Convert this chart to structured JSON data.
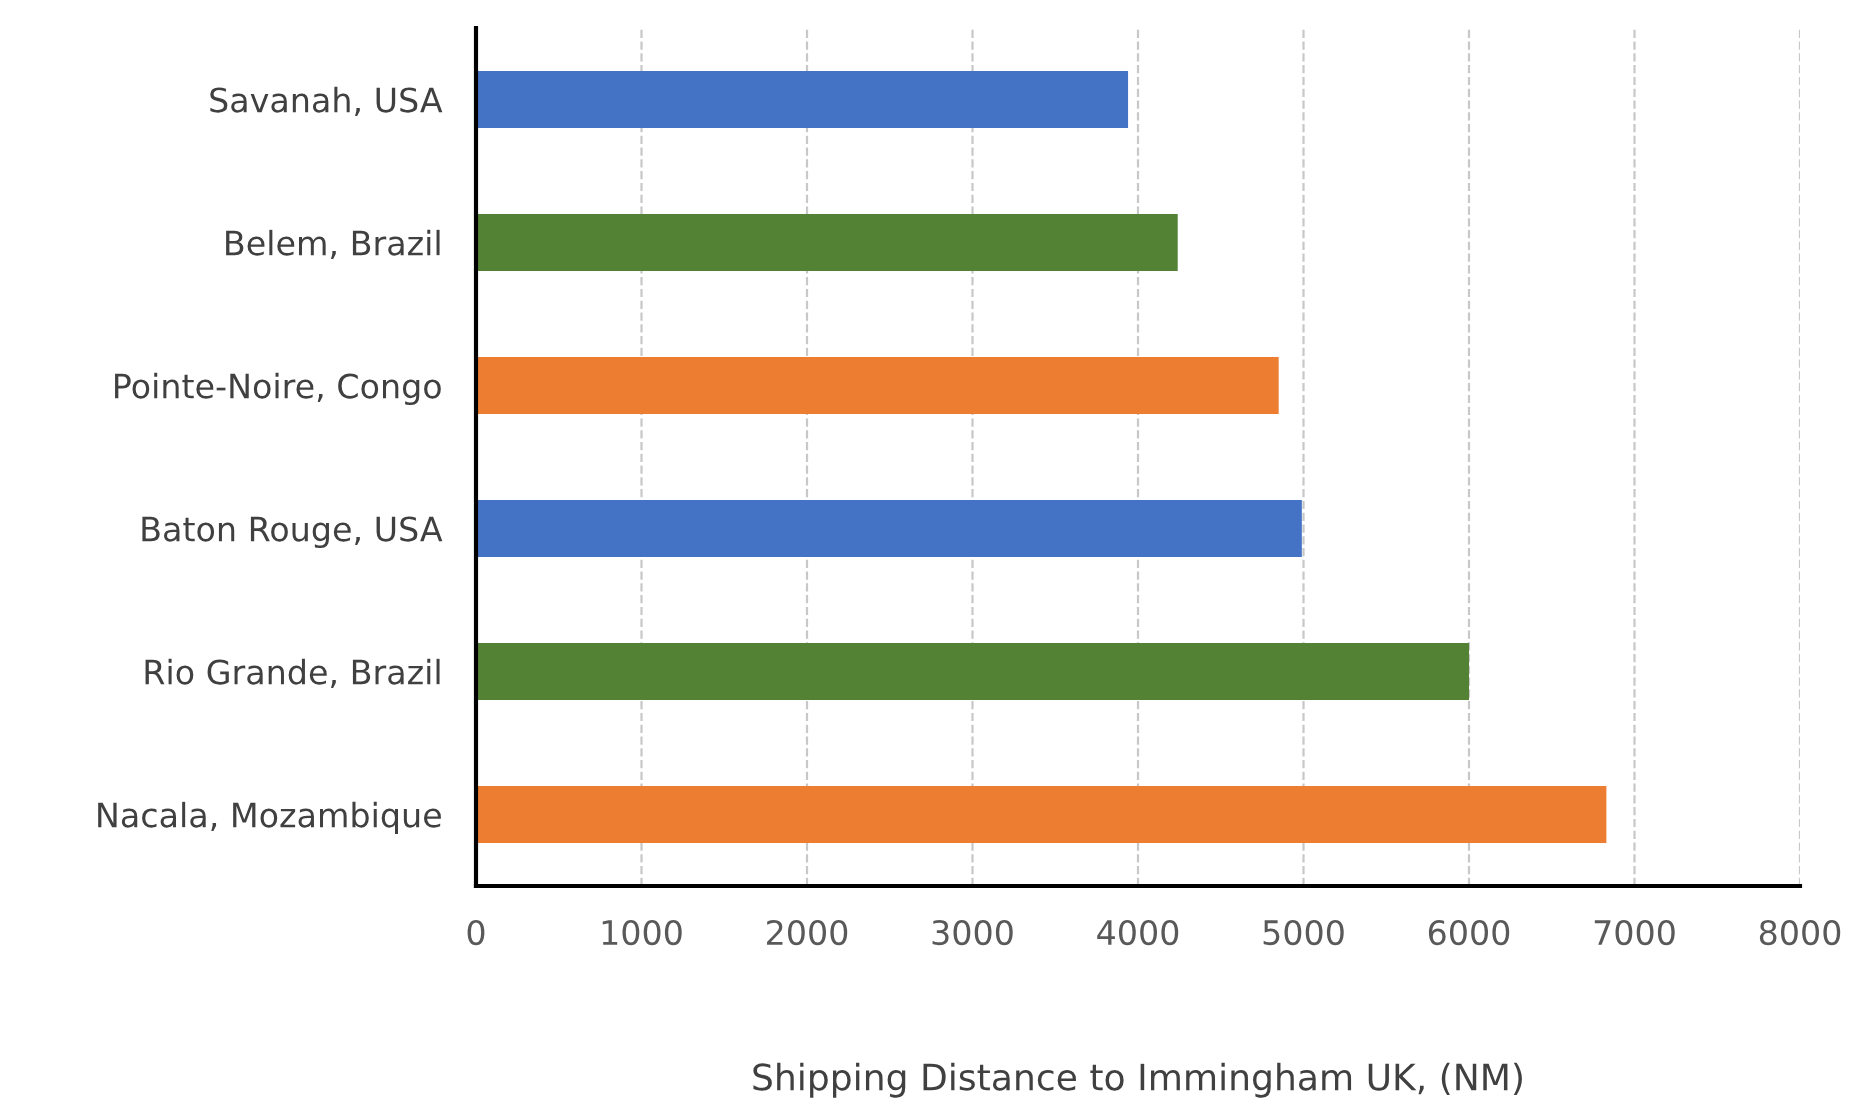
{
  "chart_data": {
    "type": "bar",
    "orientation": "horizontal",
    "xlabel": "Shipping Distance to Immingham UK, (NM)",
    "categories": [
      "Savanah, USA",
      "Belem, Brazil",
      "Pointe-Noire, Congo",
      "Baton Rouge, USA",
      "Rio Grande, Brazil",
      "Nacala, Mozambique"
    ],
    "values": [
      3940,
      4240,
      4850,
      4990,
      6000,
      6830
    ],
    "colors": [
      "#4472c4",
      "#548235",
      "#ed7d31",
      "#4472c4",
      "#548235",
      "#ed7d31"
    ],
    "xlim": [
      0,
      8000
    ],
    "xticks": [
      0,
      1000,
      2000,
      3000,
      4000,
      5000,
      6000,
      7000,
      8000
    ],
    "grid": "x"
  }
}
